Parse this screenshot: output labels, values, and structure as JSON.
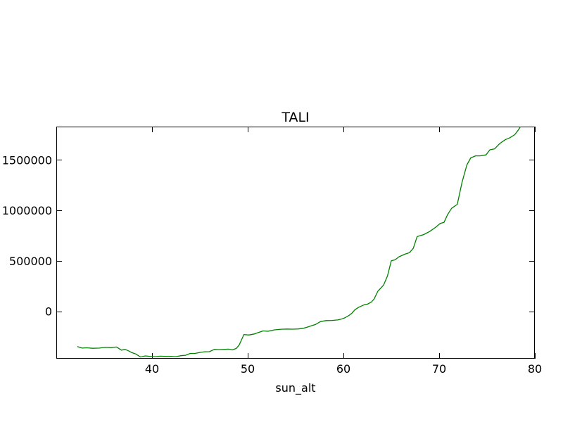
{
  "chart_data": {
    "type": "line",
    "title": "TALI",
    "xlabel": "sun_alt",
    "ylabel": "",
    "xlim": [
      30,
      80
    ],
    "ylim": [
      -470000,
      1830000
    ],
    "xticks": [
      40,
      50,
      60,
      70,
      80
    ],
    "xtick_labels": [
      "40",
      "50",
      "60",
      "70",
      "80"
    ],
    "yticks": [
      0,
      500000,
      1000000,
      1500000
    ],
    "ytick_labels": [
      "0",
      "500000",
      "1000000",
      "1500000"
    ],
    "grid": false,
    "series": [
      {
        "color": "#008000",
        "x": [
          32.2,
          32.7,
          33.2,
          33.8,
          34.5,
          35.1,
          35.7,
          36.3,
          36.8,
          37.2,
          37.6,
          37.9,
          38.3,
          38.8,
          39.3,
          39.8,
          40.3,
          40.9,
          41.5,
          42.0,
          42.5,
          43.0,
          43.5,
          44.0,
          44.5,
          45.0,
          45.5,
          46.0,
          46.5,
          47.0,
          47.5,
          48.0,
          48.4,
          48.8,
          49.1,
          49.6,
          50.1,
          50.7,
          51.2,
          51.6,
          52.1,
          52.8,
          53.5,
          54.1,
          54.7,
          55.3,
          55.8,
          56.2,
          56.6,
          57.1,
          57.6,
          58.2,
          58.8,
          59.4,
          59.9,
          60.2,
          60.6,
          60.9,
          61.2,
          61.6,
          62.2,
          62.5,
          62.9,
          63.2,
          63.6,
          64.2,
          64.6,
          65.0,
          65.4,
          65.8,
          66.4,
          66.9,
          67.3,
          67.7,
          68.4,
          69.0,
          69.6,
          70.1,
          70.5,
          70.9,
          71.3,
          71.9,
          72.4,
          72.9,
          73.3,
          73.8,
          74.3,
          74.9,
          75.3,
          75.8,
          76.3,
          76.9,
          77.4,
          77.9,
          78.3,
          78.5
        ],
        "y": [
          -350000,
          -365000,
          -362000,
          -367000,
          -365000,
          -358000,
          -360000,
          -354000,
          -385000,
          -378000,
          -395000,
          -410000,
          -423000,
          -453000,
          -442000,
          -448000,
          -450000,
          -445000,
          -448000,
          -446000,
          -450000,
          -440000,
          -436000,
          -418000,
          -418000,
          -408000,
          -401000,
          -400000,
          -378000,
          -380000,
          -378000,
          -375000,
          -383000,
          -368000,
          -335000,
          -230000,
          -235000,
          -225000,
          -208000,
          -195000,
          -198000,
          -184000,
          -178000,
          -176000,
          -177000,
          -175000,
          -168000,
          -158000,
          -145000,
          -130000,
          -102000,
          -92000,
          -91000,
          -86000,
          -75000,
          -62000,
          -40000,
          -18000,
          15000,
          40000,
          65000,
          70000,
          90000,
          120000,
          200000,
          260000,
          350000,
          500000,
          510000,
          540000,
          565000,
          580000,
          625000,
          740000,
          760000,
          790000,
          830000,
          870000,
          880000,
          960000,
          1020000,
          1060000,
          1280000,
          1450000,
          1520000,
          1540000,
          1540000,
          1550000,
          1600000,
          1610000,
          1660000,
          1700000,
          1720000,
          1750000,
          1800000,
          1830000
        ]
      }
    ]
  }
}
